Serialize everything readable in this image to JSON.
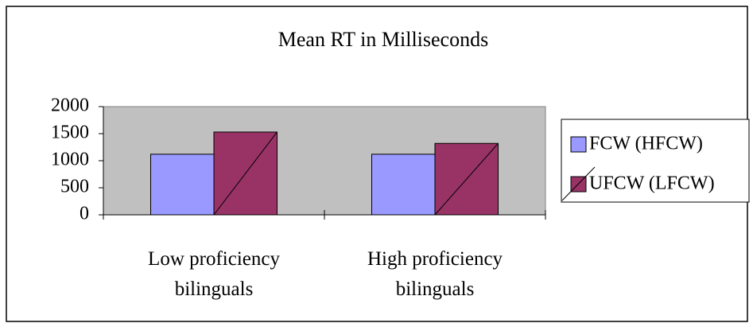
{
  "chart_data": {
    "type": "bar",
    "title": "Mean RT in Milliseconds",
    "categories": [
      "Low proficiency bilinguals",
      "High proficiency bilinguals"
    ],
    "series": [
      {
        "name": "FCW (HFCW)",
        "color": "#9999ff",
        "values": [
          1120,
          1120
        ]
      },
      {
        "name": "UFCW (LFCW)",
        "color": "#993366",
        "values": [
          1530,
          1320
        ]
      }
    ],
    "ylim": [
      0,
      2000
    ],
    "yticks": [
      0,
      500,
      1000,
      1500,
      2000
    ]
  }
}
